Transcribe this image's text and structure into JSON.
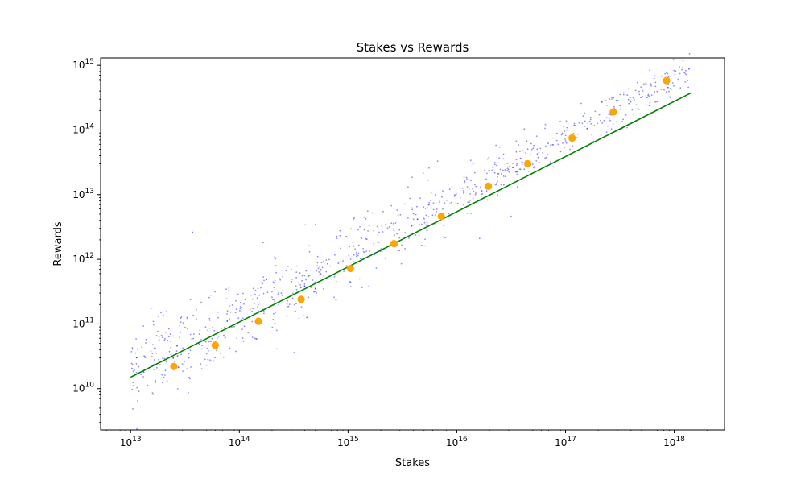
{
  "chart_data": {
    "type": "scatter",
    "title": "Stakes vs Rewards",
    "xlabel": "Stakes",
    "ylabel": "Rewards",
    "xscale": "log",
    "yscale": "log",
    "xlim": [
      5300000000000.0,
      2.9e+18
    ],
    "ylim": [
      2300000000.0,
      1300000000000000.0
    ],
    "x_ticks": [
      {
        "value": 10000000000000.0,
        "base": "10",
        "exp": "13"
      },
      {
        "value": 100000000000000.0,
        "base": "10",
        "exp": "14"
      },
      {
        "value": 1000000000000000.0,
        "base": "10",
        "exp": "15"
      },
      {
        "value": 1e+16,
        "base": "10",
        "exp": "16"
      },
      {
        "value": 1e+17,
        "base": "10",
        "exp": "17"
      },
      {
        "value": 1e+18,
        "base": "10",
        "exp": "18"
      }
    ],
    "y_ticks": [
      {
        "value": 10000000000.0,
        "base": "10",
        "exp": "10"
      },
      {
        "value": 100000000000.0,
        "base": "10",
        "exp": "11"
      },
      {
        "value": 1000000000000.0,
        "base": "10",
        "exp": "12"
      },
      {
        "value": 10000000000000.0,
        "base": "10",
        "exp": "13"
      },
      {
        "value": 100000000000000.0,
        "base": "10",
        "exp": "14"
      },
      {
        "value": 1000000000000000.0,
        "base": "10",
        "exp": "15"
      }
    ],
    "grid": false,
    "series": [
      {
        "kind": "scatter-raw",
        "color": "#0000ff",
        "marker_alpha": 0.45,
        "n_points": 900,
        "x_range": [
          10000000000000.0,
          1.4e+18
        ],
        "trend_start": [
          10000000000000.0,
          18000000000.0
        ],
        "trend_end": [
          1e+18,
          630000000000000.0
        ],
        "outliers": [
          [
            37000000000000.0,
            2600000000000.0
          ]
        ]
      },
      {
        "kind": "binned-means",
        "color": "#ffa500",
        "points": [
          [
            25000000000000.0,
            22000000000.0
          ],
          [
            60000000000000.0,
            47000000000.0
          ],
          [
            150000000000000.0,
            110000000000.0
          ],
          [
            370000000000000.0,
            240000000000.0
          ],
          [
            1050000000000000.0,
            720000000000.0
          ],
          [
            2650000000000000.0,
            1750000000000.0
          ],
          [
            7200000000000000.0,
            4600000000000.0
          ],
          [
            1.95e+16,
            13500000000000.0
          ],
          [
            4.5e+16,
            30000000000000.0
          ],
          [
            1.15e+17,
            75000000000000.0
          ],
          [
            2.75e+17,
            190000000000000.0
          ],
          [
            8.5e+17,
            580000000000000.0
          ]
        ]
      },
      {
        "kind": "fit-line",
        "color": "#008000",
        "points": [
          [
            10000000000000.0,
            15000000000.0
          ],
          [
            1.45e+18,
            380000000000000.0
          ]
        ]
      }
    ]
  }
}
